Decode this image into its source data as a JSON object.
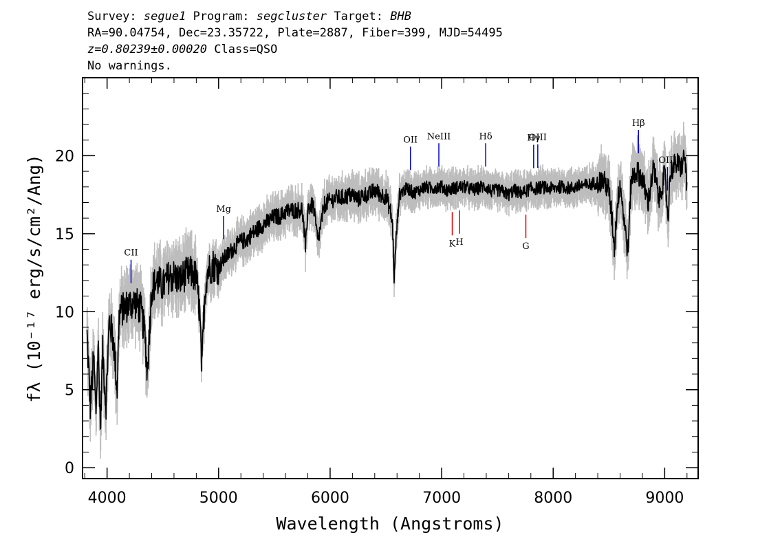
{
  "header": {
    "survey_label": "Survey:",
    "survey": "segue1",
    "program_label": "Program:",
    "program": "segcluster",
    "target_label": "Target:",
    "target": "BHB",
    "line2": "RA=90.04754, Dec=23.35722, Plate=2887, Fiber=399, MJD=54495",
    "redshift": "z=0.80239±0.00020",
    "class_text": "Class=QSO",
    "warnings": "No warnings."
  },
  "chart_data": {
    "type": "line",
    "xlabel": "Wavelength (Angstroms)",
    "ylabel": "fλ (10⁻¹⁷ erg/s/cm²/Ang)",
    "xlim": [
      3780,
      9300
    ],
    "ylim": [
      -0.7,
      25.0
    ],
    "x_ticks": [
      4000,
      5000,
      6000,
      7000,
      8000,
      9000
    ],
    "y_ticks": [
      0,
      5,
      10,
      15,
      20
    ],
    "grid": false,
    "colors": {
      "flux": "#000000",
      "error_band": "#bdbdbd",
      "emission": "#0000cc",
      "absorption": "#dd0000"
    },
    "series": [
      {
        "x": [
          3820,
          3850,
          3880,
          3900,
          3920,
          3940,
          3960,
          3990,
          4020,
          4060,
          4090,
          4110,
          4150,
          4200,
          4250,
          4300,
          4340,
          4360,
          4400,
          4450,
          4500,
          4550,
          4600,
          4650,
          4700,
          4750,
          4800,
          4830,
          4850,
          4860,
          4880,
          4900,
          4950,
          5000,
          5050,
          5100,
          5150,
          5200,
          5250,
          5300,
          5350,
          5400,
          5450,
          5500,
          5550,
          5600,
          5650,
          5700,
          5750,
          5780,
          5800,
          5850,
          5890,
          5950,
          6000,
          6050,
          6100,
          6150,
          6200,
          6250,
          6300,
          6350,
          6400,
          6450,
          6500,
          6540,
          6560,
          6575,
          6590,
          6620,
          6660,
          6700,
          6750,
          6800,
          6850,
          6900,
          6950,
          7000,
          7050,
          7100,
          7150,
          7200,
          7250,
          7300,
          7350,
          7400,
          7450,
          7500,
          7550,
          7600,
          7650,
          7700,
          7750,
          7800,
          7850,
          7900,
          7950,
          8000,
          8050,
          8100,
          8150,
          8200,
          8250,
          8300,
          8350,
          8400,
          8450,
          8500,
          8530,
          8550,
          8570,
          8600,
          8650,
          8670,
          8700,
          8750,
          8800,
          8850,
          8900,
          8950,
          9000,
          9030,
          9050,
          9100,
          9150,
          9180,
          9200
        ],
        "y": [
          8.5,
          4.0,
          7.0,
          3.5,
          8.0,
          2.5,
          7.5,
          4.0,
          9.5,
          8.0,
          5.0,
          10.0,
          10.2,
          10.5,
          10.6,
          10.2,
          8.5,
          6.0,
          11.5,
          12.0,
          11.6,
          12.2,
          12.3,
          12.0,
          12.4,
          12.5,
          12.2,
          10.0,
          6.0,
          8.5,
          11.5,
          12.6,
          13.0,
          12.8,
          13.4,
          13.8,
          14.2,
          14.5,
          14.6,
          15.0,
          15.3,
          15.6,
          15.8,
          16.1,
          16.1,
          16.4,
          16.5,
          16.5,
          16.6,
          14.0,
          16.7,
          16.8,
          14.5,
          16.9,
          17.1,
          17.3,
          17.3,
          17.4,
          17.5,
          17.2,
          17.5,
          17.5,
          17.8,
          17.5,
          17.4,
          16.5,
          15.5,
          12.0,
          14.5,
          17.5,
          17.8,
          17.9,
          17.6,
          17.8,
          18.0,
          17.9,
          18.0,
          18.0,
          17.8,
          17.9,
          18.0,
          18.0,
          17.9,
          17.8,
          18.0,
          18.0,
          17.7,
          17.8,
          17.7,
          17.5,
          17.8,
          17.6,
          17.7,
          17.9,
          17.9,
          18.0,
          17.9,
          17.9,
          18.0,
          18.0,
          17.9,
          18.0,
          18.1,
          18.1,
          18.2,
          18.3,
          18.4,
          17.8,
          15.8,
          14.0,
          16.5,
          18.3,
          15.0,
          13.8,
          18.5,
          19.0,
          18.5,
          17.0,
          19.2,
          17.2,
          18.8,
          16.0,
          19.0,
          19.5,
          19.3,
          20.0,
          18.0
        ]
      }
    ],
    "annotations": [
      {
        "label": "CII",
        "x": 4215,
        "type": "emission"
      },
      {
        "label": "Mg",
        "x": 5045,
        "type": "emission"
      },
      {
        "label": "OII",
        "x": 6720,
        "type": "emission"
      },
      {
        "label": "NeIII",
        "x": 6975,
        "type": "emission"
      },
      {
        "label": "Hδ",
        "x": 7395,
        "type": "emission"
      },
      {
        "label": "Hγ",
        "x": 7825,
        "type": "emission"
      },
      {
        "label": "OIII",
        "x": 7862,
        "type": "emission"
      },
      {
        "label": "Hβ",
        "x": 8765,
        "type": "emission"
      },
      {
        "label": "OIII",
        "x": 9025,
        "type": "emission"
      },
      {
        "label": "K",
        "x": 7095,
        "type": "absorption"
      },
      {
        "label": "H",
        "x": 7160,
        "type": "absorption"
      },
      {
        "label": "G",
        "x": 7755,
        "type": "absorption"
      }
    ]
  }
}
